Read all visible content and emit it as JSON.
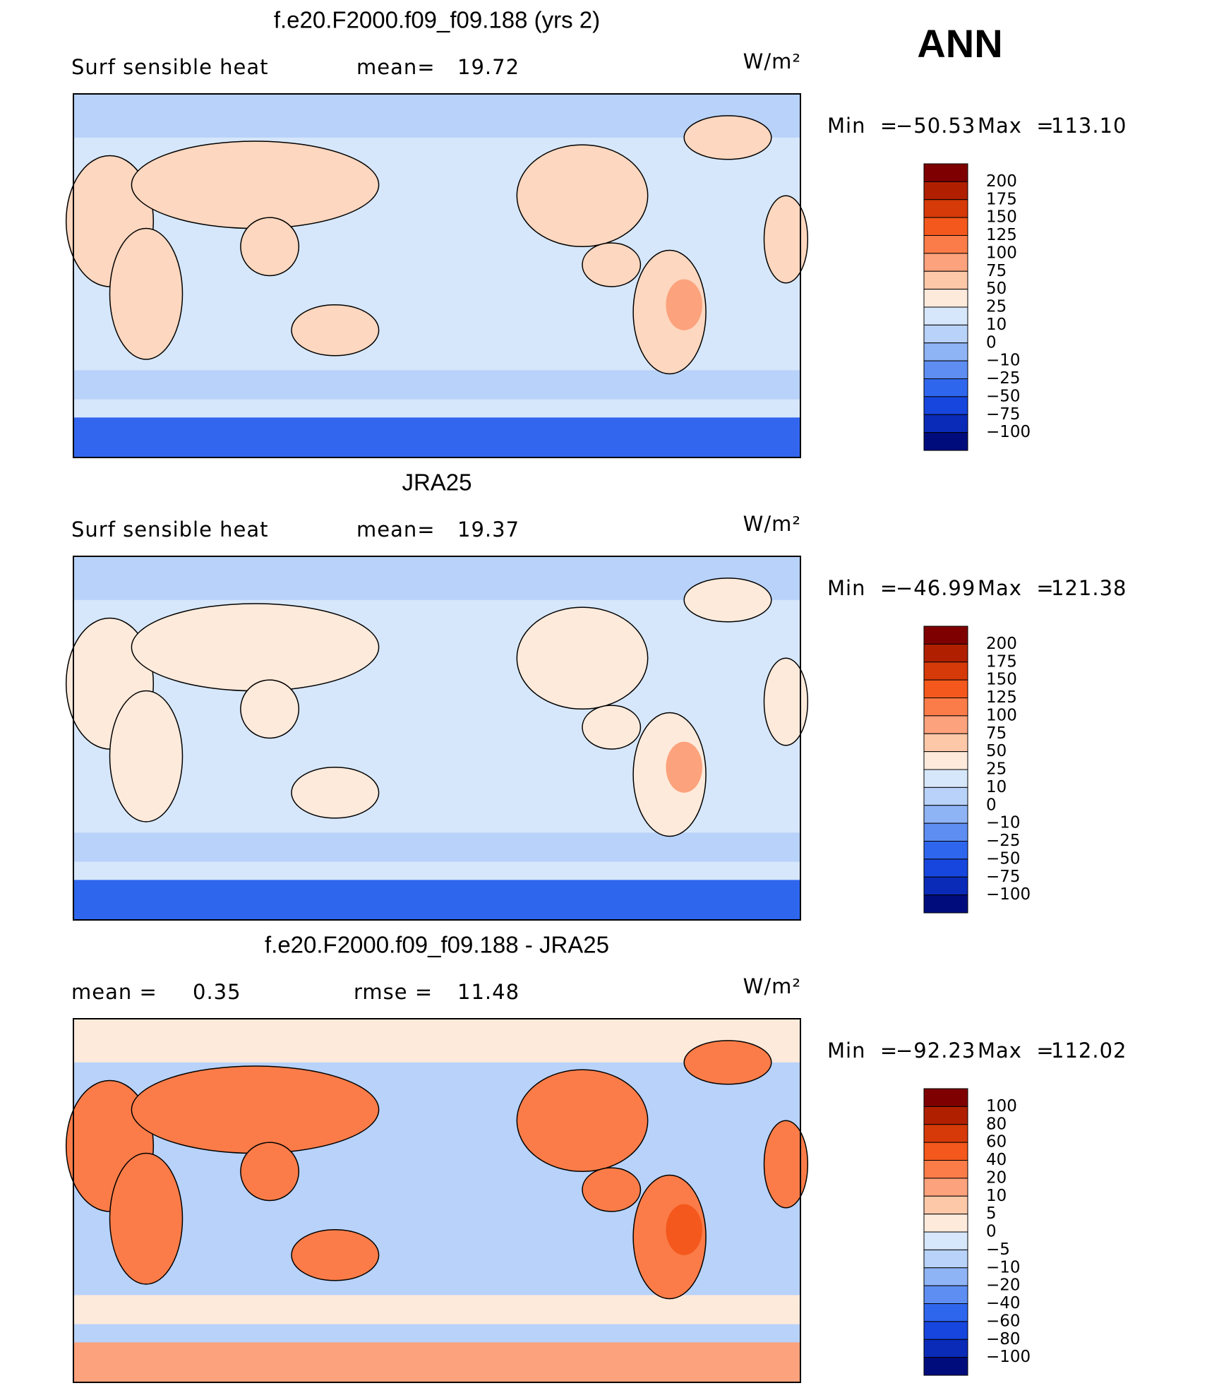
{
  "season": "ANN",
  "panels": [
    {
      "title": "f.e20.F2000.f09_f09.188 (yrs 2)",
      "left_label": "Surf sensible heat",
      "mid_label": "mean=",
      "mid_value": "19.72",
      "units": "W/m²",
      "min_label": "Min  =",
      "min": "−50.53",
      "max_label": "Max  =",
      "max": "113.10",
      "map": "model",
      "colorbar": {
        "levels": [
          "200",
          "175",
          "150",
          "125",
          "100",
          "75",
          "50",
          "25",
          "10",
          "0",
          "−10",
          "−25",
          "−50",
          "−75",
          "−100"
        ],
        "colors": [
          "#7f0000",
          "#b02000",
          "#d63a08",
          "#f4581c",
          "#fb7c48",
          "#fca27c",
          "#fdc8a8",
          "#feeadb",
          "#d6e7fb",
          "#b8d2fa",
          "#8fb4f6",
          "#5e8ef2",
          "#2f66ee",
          "#1746de",
          "#0a2ab8",
          "#000c7c"
        ]
      }
    },
    {
      "title": "JRA25",
      "left_label": "Surf sensible heat",
      "mid_label": "mean=",
      "mid_value": "19.37",
      "units": "W/m²",
      "min_label": "Min  =",
      "min": "−46.99",
      "max_label": "Max  =",
      "max": "121.38",
      "map": "obs",
      "colorbar": {
        "levels": [
          "200",
          "175",
          "150",
          "125",
          "100",
          "75",
          "50",
          "25",
          "10",
          "0",
          "−10",
          "−25",
          "−50",
          "−75",
          "−100"
        ],
        "colors": [
          "#7f0000",
          "#b02000",
          "#d63a08",
          "#f4581c",
          "#fb7c48",
          "#fca27c",
          "#fdc8a8",
          "#feeadb",
          "#d6e7fb",
          "#b8d2fa",
          "#8fb4f6",
          "#5e8ef2",
          "#2f66ee",
          "#1746de",
          "#0a2ab8",
          "#000c7c"
        ]
      }
    },
    {
      "title": "f.e20.F2000.f09_f09.188 - JRA25",
      "left_label": "mean =",
      "left_value": "0.35",
      "mid_label": "rmse =",
      "mid_value": "11.48",
      "units": "W/m²",
      "min_label": "Min  =",
      "min": "−92.23",
      "max_label": "Max  =",
      "max": "112.02",
      "map": "diff",
      "colorbar": {
        "levels": [
          "100",
          "80",
          "60",
          "40",
          "20",
          "10",
          "5",
          "0",
          "−5",
          "−10",
          "−20",
          "−40",
          "−60",
          "−80",
          "−100"
        ],
        "colors": [
          "#7f0000",
          "#b02000",
          "#d63a08",
          "#f4581c",
          "#fb7c48",
          "#fca27c",
          "#fdc8a8",
          "#feeadb",
          "#d6e7fb",
          "#b8d2fa",
          "#8fb4f6",
          "#5e8ef2",
          "#2f66ee",
          "#1746de",
          "#0a2ab8",
          "#000c7c"
        ]
      }
    }
  ]
}
